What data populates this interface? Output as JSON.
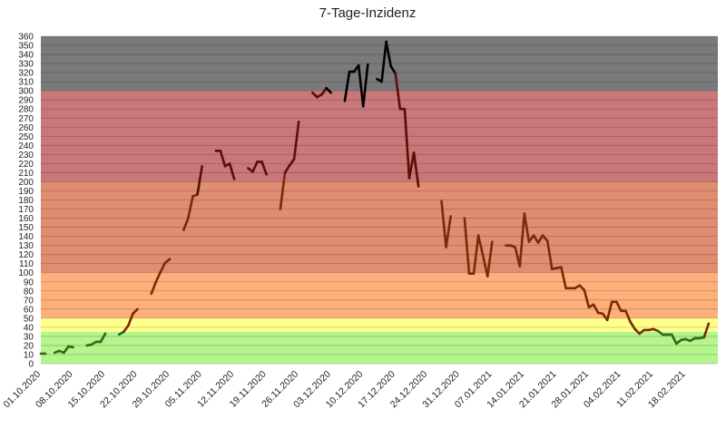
{
  "chart_data": {
    "type": "line",
    "title": "7-Tage-Inzidenz",
    "xlabel": "",
    "ylabel": "",
    "ylim": [
      0,
      360
    ],
    "ytick_step": 10,
    "grid": true,
    "x_range": [
      "2020-10-01",
      "2021-02-25"
    ],
    "x_tick_labels": [
      "01.10.2020",
      "08.10.2020",
      "15.10.2020",
      "22.10.2020",
      "29.10.2020",
      "05.11.2020",
      "12.11.2020",
      "19.11.2020",
      "26.11.2020",
      "03.12.2020",
      "10.12.2020",
      "17.12.2020",
      "24.12.2020",
      "31.12.2020",
      "07.01.2021",
      "14.01.2021",
      "21.01.2021",
      "28.01.2021",
      "04.02.2021",
      "11.02.2021",
      "18.02.2021"
    ],
    "x_tick_dates": [
      "2020-10-01",
      "2020-10-08",
      "2020-10-15",
      "2020-10-22",
      "2020-10-29",
      "2020-11-05",
      "2020-11-12",
      "2020-11-19",
      "2020-11-26",
      "2020-12-03",
      "2020-12-10",
      "2020-12-17",
      "2020-12-24",
      "2020-12-31",
      "2021-01-07",
      "2021-01-14",
      "2021-01-21",
      "2021-01-28",
      "2021-02-04",
      "2021-02-11",
      "2021-02-18"
    ],
    "bands": [
      {
        "from": 0,
        "to": 35,
        "color": "#b4f58c"
      },
      {
        "from": 35,
        "to": 50,
        "color": "#ffff8c"
      },
      {
        "from": 50,
        "to": 100,
        "color": "#fdb07a"
      },
      {
        "from": 100,
        "to": 200,
        "color": "#e08d72"
      },
      {
        "from": 200,
        "to": 300,
        "color": "#c9787a"
      },
      {
        "from": 300,
        "to": 360,
        "color": "#7a7a7a"
      }
    ],
    "line_colors": {
      "green": "#2e6b1a",
      "orange": "#7a2b05",
      "red": "#5a0f05",
      "black": "#000000"
    },
    "series": [
      {
        "values": [
          [
            "2020-10-01",
            11
          ],
          [
            "2020-10-02",
            11
          ],
          null,
          [
            "2020-10-04",
            12
          ],
          [
            "2020-10-05",
            14
          ],
          [
            "2020-10-06",
            12
          ],
          [
            "2020-10-07",
            19
          ],
          [
            "2020-10-08",
            18
          ],
          null,
          [
            "2020-10-11",
            20
          ],
          [
            "2020-10-12",
            21
          ],
          [
            "2020-10-13",
            24
          ],
          [
            "2020-10-14",
            24
          ],
          [
            "2020-10-15",
            33
          ],
          null,
          [
            "2020-10-18",
            32
          ],
          [
            "2020-10-19",
            35
          ],
          [
            "2020-10-20",
            42
          ],
          [
            "2020-10-21",
            55
          ],
          [
            "2020-10-22",
            60
          ],
          null,
          [
            "2020-10-25",
            77
          ],
          [
            "2020-10-26",
            90
          ],
          [
            "2020-10-27",
            101
          ],
          [
            "2020-10-28",
            111
          ],
          [
            "2020-10-29",
            115
          ],
          null,
          [
            "2020-11-01",
            147
          ],
          [
            "2020-11-02",
            160
          ],
          [
            "2020-11-03",
            184
          ],
          [
            "2020-11-04",
            186
          ],
          [
            "2020-11-05",
            217
          ],
          null,
          [
            "2020-11-08",
            234
          ],
          [
            "2020-11-09",
            234
          ],
          [
            "2020-11-10",
            217
          ],
          [
            "2020-11-11",
            220
          ],
          [
            "2020-11-12",
            203
          ],
          null,
          [
            "2020-11-15",
            215
          ],
          [
            "2020-11-16",
            211
          ],
          [
            "2020-11-17",
            222
          ],
          [
            "2020-11-18",
            222
          ],
          [
            "2020-11-19",
            208
          ],
          null,
          [
            "2020-11-22",
            170
          ],
          [
            "2020-11-23",
            210
          ],
          [
            "2020-11-24",
            218
          ],
          [
            "2020-11-25",
            225
          ],
          [
            "2020-11-26",
            266
          ],
          null,
          [
            "2020-11-29",
            298
          ],
          [
            "2020-11-30",
            293
          ],
          [
            "2020-12-01",
            296
          ],
          [
            "2020-12-02",
            303
          ],
          [
            "2020-12-03",
            298
          ],
          null,
          [
            "2020-12-06",
            289
          ],
          [
            "2020-12-07",
            321
          ],
          [
            "2020-12-08",
            321
          ],
          [
            "2020-12-09",
            328
          ],
          [
            "2020-12-10",
            283
          ],
          [
            "2020-12-11",
            329
          ],
          null,
          [
            "2020-12-13",
            313
          ],
          [
            "2020-12-14",
            310
          ],
          [
            "2020-12-15",
            354
          ],
          [
            "2020-12-16",
            327
          ],
          [
            "2020-12-17",
            319
          ],
          [
            "2020-12-18",
            280
          ],
          [
            "2020-12-19",
            280
          ],
          [
            "2020-12-20",
            204
          ],
          [
            "2020-12-21",
            232
          ],
          [
            "2020-12-22",
            195
          ],
          null,
          [
            "2020-12-27",
            179
          ],
          [
            "2020-12-28",
            128
          ],
          [
            "2020-12-29",
            162
          ],
          null,
          [
            "2021-01-01",
            160
          ],
          [
            "2021-01-02",
            99
          ],
          [
            "2021-01-03",
            99
          ],
          [
            "2021-01-04",
            141
          ],
          [
            "2021-01-05",
            119
          ],
          [
            "2021-01-06",
            96
          ],
          [
            "2021-01-07",
            134
          ],
          null,
          [
            "2021-01-10",
            130
          ],
          [
            "2021-01-11",
            130
          ],
          [
            "2021-01-12",
            128
          ],
          [
            "2021-01-13",
            107
          ],
          [
            "2021-01-14",
            165
          ],
          [
            "2021-01-15",
            134
          ],
          [
            "2021-01-16",
            141
          ],
          [
            "2021-01-17",
            133
          ],
          [
            "2021-01-18",
            141
          ],
          [
            "2021-01-19",
            135
          ],
          [
            "2021-01-20",
            104
          ],
          [
            "2021-01-21",
            105
          ],
          [
            "2021-01-22",
            106
          ],
          [
            "2021-01-23",
            83
          ],
          [
            "2021-01-24",
            83
          ],
          [
            "2021-01-25",
            83
          ],
          [
            "2021-01-26",
            86
          ],
          [
            "2021-01-27",
            81
          ],
          [
            "2021-01-28",
            62
          ],
          [
            "2021-01-29",
            65
          ],
          [
            "2021-01-30",
            56
          ],
          [
            "2021-01-31",
            55
          ],
          [
            "2021-02-01",
            48
          ],
          [
            "2021-02-02",
            68
          ],
          [
            "2021-02-03",
            68
          ],
          [
            "2021-02-04",
            58
          ],
          [
            "2021-02-05",
            58
          ],
          [
            "2021-02-06",
            46
          ],
          [
            "2021-02-07",
            38
          ],
          [
            "2021-02-08",
            33
          ],
          [
            "2021-02-09",
            37
          ],
          [
            "2021-02-10",
            37
          ],
          [
            "2021-02-11",
            38
          ],
          [
            "2021-02-12",
            36
          ],
          [
            "2021-02-13",
            32
          ],
          [
            "2021-02-14",
            32
          ],
          [
            "2021-02-15",
            32
          ],
          [
            "2021-02-16",
            22
          ],
          [
            "2021-02-17",
            26
          ],
          [
            "2021-02-18",
            27
          ],
          [
            "2021-02-19",
            25
          ],
          [
            "2021-02-20",
            28
          ],
          [
            "2021-02-21",
            28
          ],
          [
            "2021-02-22",
            29
          ],
          [
            "2021-02-23",
            44
          ]
        ]
      }
    ]
  }
}
